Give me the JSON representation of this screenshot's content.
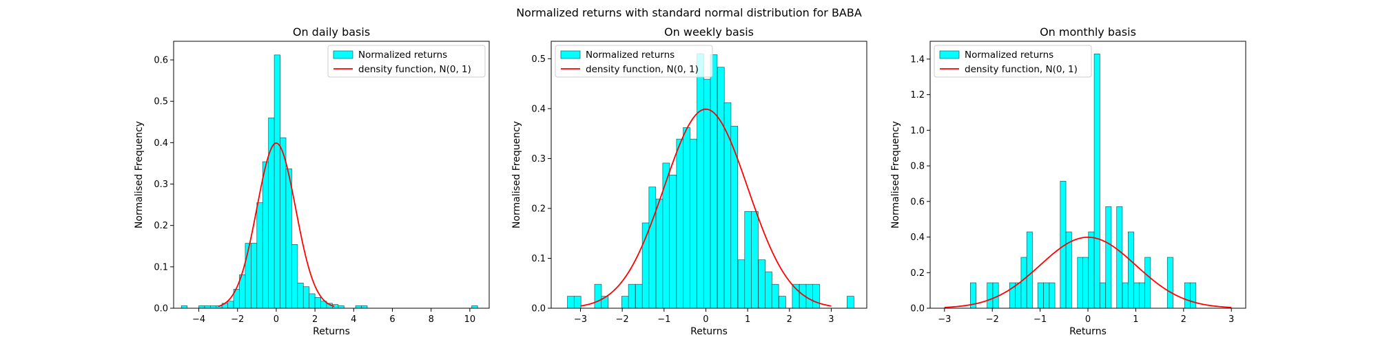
{
  "figure": {
    "suptitle": "Normalized returns with standard normal distribution for BABA",
    "colors": {
      "bar_fill": "#00ffff",
      "bar_edge": "#1a5a5a",
      "curve": "#ff0000"
    },
    "legend_labels": [
      "Normalized returns",
      "density function, N(0, 1)"
    ]
  },
  "chart_data": [
    {
      "type": "bar",
      "title": "On daily basis",
      "xlabel": "Returns",
      "ylabel": "Normalised Frequency",
      "xlim": [
        -5.3,
        11.0
      ],
      "ylim": [
        0,
        0.645
      ],
      "xticks": [
        -4,
        -2,
        0,
        2,
        4,
        6,
        8,
        10
      ],
      "yticks": [
        0.0,
        0.1,
        0.2,
        0.3,
        0.4,
        0.5,
        0.6
      ],
      "legend": "top-right",
      "series": [
        {
          "name": "Normalized returns",
          "kind": "histogram",
          "bin_width": 0.302,
          "bins": [
            [
              -4.75,
              0.006
            ],
            [
              -3.85,
              0.006
            ],
            [
              -3.55,
              0.006
            ],
            [
              -3.25,
              0.006
            ],
            [
              -2.95,
              0.006
            ],
            [
              -2.65,
              0.012
            ],
            [
              -2.35,
              0.017
            ],
            [
              -2.05,
              0.046
            ],
            [
              -1.75,
              0.081
            ],
            [
              -1.45,
              0.157
            ],
            [
              -1.15,
              0.157
            ],
            [
              -0.85,
              0.255
            ],
            [
              -0.55,
              0.354
            ],
            [
              -0.25,
              0.46
            ],
            [
              0.05,
              0.612
            ],
            [
              0.35,
              0.412
            ],
            [
              0.65,
              0.337
            ],
            [
              0.95,
              0.154
            ],
            [
              1.25,
              0.061
            ],
            [
              1.55,
              0.052
            ],
            [
              1.85,
              0.035
            ],
            [
              2.15,
              0.026
            ],
            [
              2.45,
              0.017
            ],
            [
              2.75,
              0.012
            ],
            [
              3.05,
              0.009
            ],
            [
              3.35,
              0.006
            ],
            [
              4.25,
              0.006
            ],
            [
              4.55,
              0.006
            ],
            [
              10.25,
              0.006
            ]
          ]
        },
        {
          "name": "density function, N(0, 1)",
          "kind": "normal_pdf",
          "mu": 0,
          "sigma": 1,
          "x_range": [
            -3,
            3
          ]
        }
      ]
    },
    {
      "type": "bar",
      "title": "On weekly basis",
      "xlabel": "Returns",
      "ylabel": "Normalised Frequency",
      "xlim": [
        -3.7,
        3.85
      ],
      "ylim": [
        0,
        0.535
      ],
      "xticks": [
        -3,
        -2,
        -1,
        0,
        1,
        2,
        3
      ],
      "yticks": [
        0.0,
        0.1,
        0.2,
        0.3,
        0.4,
        0.5
      ],
      "legend": "top-left",
      "series": [
        {
          "name": "Normalized returns",
          "kind": "histogram",
          "bin_width": 0.163,
          "bins": [
            [
              -3.23,
              0.024
            ],
            [
              -3.07,
              0.024
            ],
            [
              -2.58,
              0.048
            ],
            [
              -2.42,
              0.024
            ],
            [
              -1.93,
              0.024
            ],
            [
              -1.77,
              0.048
            ],
            [
              -1.6,
              0.048
            ],
            [
              -1.44,
              0.171
            ],
            [
              -1.28,
              0.243
            ],
            [
              -1.11,
              0.219
            ],
            [
              -0.95,
              0.291
            ],
            [
              -0.79,
              0.267
            ],
            [
              -0.62,
              0.339
            ],
            [
              -0.46,
              0.362
            ],
            [
              -0.3,
              0.339
            ],
            [
              -0.13,
              0.51
            ],
            [
              0.03,
              0.459
            ],
            [
              0.19,
              0.508
            ],
            [
              0.36,
              0.483
            ],
            [
              0.52,
              0.412
            ],
            [
              0.68,
              0.365
            ],
            [
              0.85,
              0.097
            ],
            [
              1.01,
              0.194
            ],
            [
              1.17,
              0.194
            ],
            [
              1.34,
              0.097
            ],
            [
              1.5,
              0.073
            ],
            [
              1.66,
              0.048
            ],
            [
              1.83,
              0.024
            ],
            [
              2.15,
              0.048
            ],
            [
              2.32,
              0.048
            ],
            [
              2.48,
              0.048
            ],
            [
              2.64,
              0.048
            ],
            [
              3.46,
              0.024
            ]
          ]
        },
        {
          "name": "density function, N(0, 1)",
          "kind": "normal_pdf",
          "mu": 0,
          "sigma": 1,
          "x_range": [
            -3,
            3
          ]
        }
      ]
    },
    {
      "type": "bar",
      "title": "On monthly basis",
      "xlabel": "Returns",
      "ylabel": "Normalised Frequency",
      "xlim": [
        -3.3,
        3.3
      ],
      "ylim": [
        0,
        1.5
      ],
      "xticks": [
        -3,
        -2,
        -1,
        0,
        1,
        2,
        3
      ],
      "yticks": [
        0.0,
        0.2,
        0.4,
        0.6,
        0.8,
        1.0,
        1.2,
        1.4
      ],
      "legend": "top-left",
      "series": [
        {
          "name": "Normalized returns",
          "kind": "histogram",
          "bin_width": 0.118,
          "bins": [
            [
              -2.4,
              0.143
            ],
            [
              -2.05,
              0.143
            ],
            [
              -1.93,
              0.143
            ],
            [
              -1.58,
              0.143
            ],
            [
              -1.46,
              0.143
            ],
            [
              -1.34,
              0.286
            ],
            [
              -1.22,
              0.429
            ],
            [
              -0.99,
              0.143
            ],
            [
              -0.87,
              0.143
            ],
            [
              -0.75,
              0.143
            ],
            [
              -0.52,
              0.714
            ],
            [
              -0.4,
              0.429
            ],
            [
              -0.16,
              0.286
            ],
            [
              -0.05,
              0.286
            ],
            [
              0.07,
              0.429
            ],
            [
              0.19,
              1.429
            ],
            [
              0.31,
              0.143
            ],
            [
              0.43,
              0.571
            ],
            [
              0.66,
              0.571
            ],
            [
              0.78,
              0.143
            ],
            [
              0.9,
              0.429
            ],
            [
              1.02,
              0.143
            ],
            [
              1.13,
              0.143
            ],
            [
              1.25,
              0.286
            ],
            [
              1.72,
              0.286
            ],
            [
              2.08,
              0.143
            ],
            [
              2.2,
              0.143
            ]
          ]
        },
        {
          "name": "density function, N(0, 1)",
          "kind": "normal_pdf",
          "mu": 0,
          "sigma": 1,
          "x_range": [
            -3,
            3
          ]
        }
      ]
    }
  ]
}
